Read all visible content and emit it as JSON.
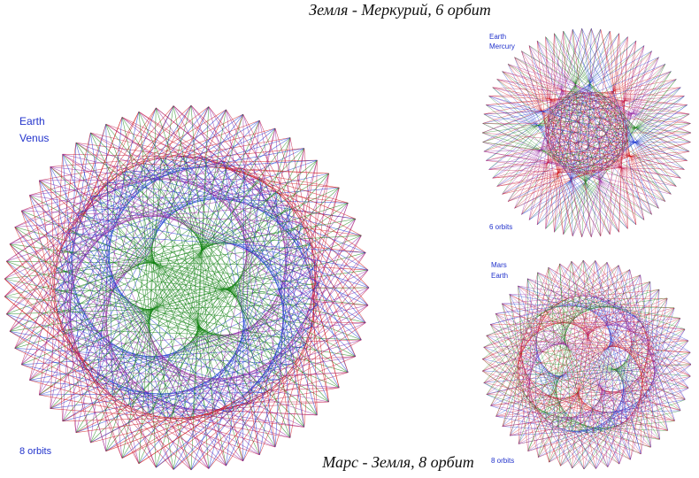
{
  "top_caption": "Земля - Меркурий, 6 орбит",
  "bottom_caption": "Марс - Земля, 8 орбит",
  "panels": [
    {
      "labels": [
        "Earth",
        "Venus"
      ],
      "orbits_label": "8 orbits"
    },
    {
      "labels": [
        "Earth",
        "Mercury"
      ],
      "orbits_label": "6 orbits"
    },
    {
      "labels": [
        "Mars",
        "Earth"
      ],
      "orbits_label": "8 orbits"
    }
  ]
}
